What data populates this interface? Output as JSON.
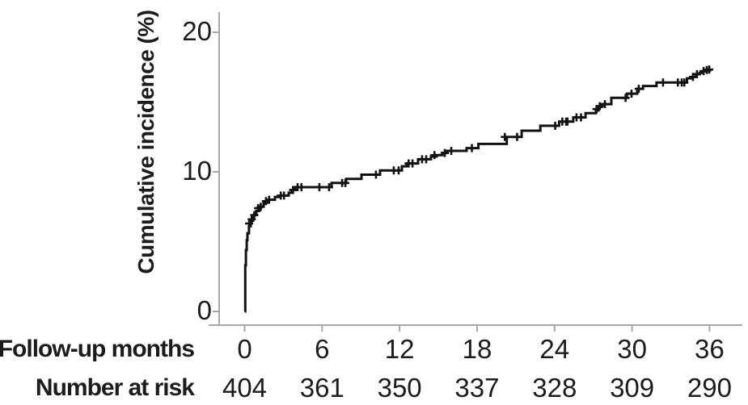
{
  "figure": {
    "background": "#ffffff",
    "axis_color": "#a7a7a7",
    "curve_color": "#121212",
    "text_color": "#1c1c1c"
  },
  "chart_data": {
    "type": "line",
    "variant": "cumulative-incidence-step-curve-with-censor-marks",
    "title": "",
    "ylabel": "Cumulative incidence (%)",
    "xlabel": "",
    "x_axis_row_label": "Follow-up months",
    "y_ticks": [
      0,
      10,
      20
    ],
    "x_ticks": [
      0,
      6,
      12,
      18,
      24,
      30,
      36
    ],
    "ylim": [
      0,
      20
    ],
    "xlim": [
      0,
      36.5
    ],
    "grid": false,
    "legend": false,
    "series": [
      {
        "name": "Cumulative incidence",
        "steps_month_pct": [
          [
            0,
            0
          ],
          [
            0.05,
            3.3
          ],
          [
            0.1,
            4.4
          ],
          [
            0.16,
            5.1
          ],
          [
            0.22,
            5.6
          ],
          [
            0.34,
            6.1
          ],
          [
            0.47,
            6.5
          ],
          [
            0.66,
            6.9
          ],
          [
            0.91,
            7.2
          ],
          [
            1.16,
            7.5
          ],
          [
            1.47,
            7.8
          ],
          [
            1.78,
            8.0
          ],
          [
            2.35,
            8.2
          ],
          [
            2.79,
            8.3
          ],
          [
            3.41,
            8.5
          ],
          [
            3.66,
            8.7
          ],
          [
            3.91,
            8.9
          ],
          [
            6.73,
            9.2
          ],
          [
            7.86,
            9.5
          ],
          [
            9.05,
            9.8
          ],
          [
            10.49,
            10.1
          ],
          [
            12.18,
            10.4
          ],
          [
            12.55,
            10.6
          ],
          [
            13.43,
            10.9
          ],
          [
            14.43,
            11.1
          ],
          [
            14.87,
            11.2
          ],
          [
            15.31,
            11.35
          ],
          [
            15.68,
            11.5
          ],
          [
            17.19,
            11.7
          ],
          [
            18.1,
            12.0
          ],
          [
            20.3,
            12.5
          ],
          [
            21.45,
            12.95
          ],
          [
            22.9,
            13.3
          ],
          [
            24.35,
            13.6
          ],
          [
            25.45,
            13.9
          ],
          [
            26.4,
            14.2
          ],
          [
            27.2,
            14.4
          ],
          [
            27.4,
            14.65
          ],
          [
            27.65,
            14.85
          ],
          [
            28.4,
            15.3
          ],
          [
            29.6,
            15.6
          ],
          [
            30.4,
            15.95
          ],
          [
            30.85,
            16.15
          ],
          [
            31.9,
            16.4
          ],
          [
            34.25,
            16.7
          ],
          [
            34.6,
            16.8
          ],
          [
            34.95,
            17.0
          ],
          [
            35.25,
            17.1
          ],
          [
            35.45,
            17.2
          ],
          [
            35.7,
            17.28
          ],
          [
            36.05,
            17.33
          ]
        ],
        "censor_marks_month_pct": [
          [
            0.35,
            6.3
          ],
          [
            0.55,
            6.6
          ],
          [
            0.75,
            6.9
          ],
          [
            1.05,
            7.4
          ],
          [
            1.25,
            7.5
          ],
          [
            1.65,
            7.9
          ],
          [
            1.9,
            8.0
          ],
          [
            2.8,
            8.3
          ],
          [
            3.05,
            8.3
          ],
          [
            3.75,
            8.7
          ],
          [
            4.1,
            8.9
          ],
          [
            4.4,
            8.9
          ],
          [
            5.79,
            8.9
          ],
          [
            6.54,
            8.9
          ],
          [
            7.55,
            9.2
          ],
          [
            7.8,
            9.2
          ],
          [
            10.17,
            9.8
          ],
          [
            11.55,
            10.1
          ],
          [
            11.93,
            10.1
          ],
          [
            12.7,
            10.6
          ],
          [
            13.0,
            10.6
          ],
          [
            13.74,
            10.9
          ],
          [
            14.06,
            10.9
          ],
          [
            14.7,
            11.2
          ],
          [
            15.5,
            11.35
          ],
          [
            16.0,
            11.5
          ],
          [
            17.6,
            11.7
          ],
          [
            20.15,
            12.5
          ],
          [
            21.1,
            12.5
          ],
          [
            24.05,
            13.3
          ],
          [
            24.6,
            13.6
          ],
          [
            24.9,
            13.6
          ],
          [
            25.0,
            13.6
          ],
          [
            25.7,
            13.9
          ],
          [
            26.05,
            13.9
          ],
          [
            27.25,
            14.5
          ],
          [
            27.5,
            14.7
          ],
          [
            27.9,
            14.85
          ],
          [
            29.5,
            15.3
          ],
          [
            29.96,
            15.6
          ],
          [
            30.52,
            15.95
          ],
          [
            32.4,
            16.4
          ],
          [
            33.55,
            16.4
          ],
          [
            33.85,
            16.4
          ],
          [
            34.05,
            16.4
          ],
          [
            34.72,
            16.8
          ],
          [
            35.03,
            17.0
          ],
          [
            35.54,
            17.22
          ],
          [
            35.79,
            17.3
          ],
          [
            35.98,
            17.33
          ]
        ]
      }
    ],
    "number_at_risk": {
      "label": "Number at risk",
      "months": [
        0,
        6,
        12,
        18,
        24,
        30,
        36
      ],
      "values": [
        404,
        361,
        350,
        337,
        328,
        309,
        290
      ]
    }
  }
}
